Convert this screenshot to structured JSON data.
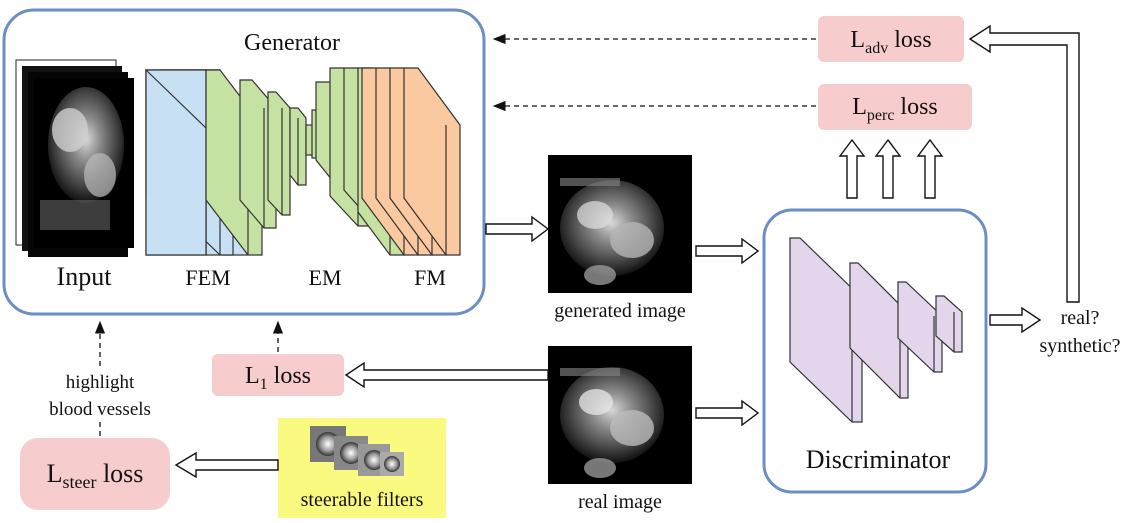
{
  "generator": {
    "title": "Generator",
    "input_label": "Input",
    "fem_label": "FEM",
    "em_label": "EM",
    "fm_label": "FM"
  },
  "discriminator": {
    "title": "Discriminator"
  },
  "images": {
    "generated_label": "generated image",
    "real_label": "real image"
  },
  "losses": {
    "adv": {
      "main": "L",
      "sub": "adv",
      "suffix": " loss"
    },
    "perc": {
      "main": "L",
      "sub": "perc",
      "suffix": " loss"
    },
    "l1": {
      "main": "L",
      "sub": "1",
      "suffix": " loss"
    },
    "steer": {
      "main": "L",
      "sub": "steer",
      "suffix": " loss"
    }
  },
  "annotations": {
    "highlight_line1": "highlight",
    "highlight_line2": "blood vessels",
    "output_line1": "real?",
    "output_line2": "synthetic?",
    "steerable_label": "steerable filters"
  },
  "colors": {
    "box_border": "#6b8fc4",
    "loss_fill": "#f6cccc",
    "fem_fill": "#c7e0f4",
    "em_fill": "#c6e2a2",
    "fm_fill": "#fbc9a0",
    "disc_fill": "#e3d6ec",
    "steer_fill": "#fafa80"
  }
}
